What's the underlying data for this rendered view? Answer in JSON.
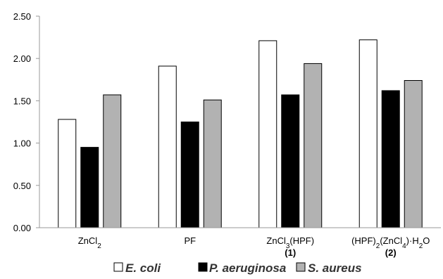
{
  "chart_data": {
    "type": "bar",
    "categories": [
      {
        "main": "ZnCl",
        "sub": "2",
        "tail": "",
        "second_line": ""
      },
      {
        "main": "PF",
        "sub": "",
        "tail": "",
        "second_line": ""
      },
      {
        "main": "ZnCl",
        "sub": "3",
        "tail": "(HPF)",
        "second_line": "(1)"
      },
      {
        "main": "(HPF)",
        "sub": "2",
        "tail": "(ZnCl",
        "sub2": "4",
        "tail2": ")·H",
        "sub3": "2",
        "tail3": "O",
        "second_line": "(2)"
      }
    ],
    "series": [
      {
        "name": "E. coli",
        "color": "#ffffff",
        "values": [
          1.28,
          1.91,
          2.21,
          2.22
        ]
      },
      {
        "name": "P. aeruginosa",
        "color": "#000000",
        "values": [
          0.95,
          1.25,
          1.57,
          1.62
        ]
      },
      {
        "name": "S. aureus",
        "color": "#b2b2b2",
        "values": [
          1.57,
          1.51,
          1.94,
          1.74
        ]
      }
    ],
    "yticks": [
      "0.00",
      "0.50",
      "1.00",
      "1.50",
      "2.00",
      "2.50"
    ],
    "ylim": [
      0,
      2.5
    ],
    "grid": false,
    "legend_position": "bottom",
    "title": "",
    "xlabel": "",
    "ylabel": ""
  }
}
